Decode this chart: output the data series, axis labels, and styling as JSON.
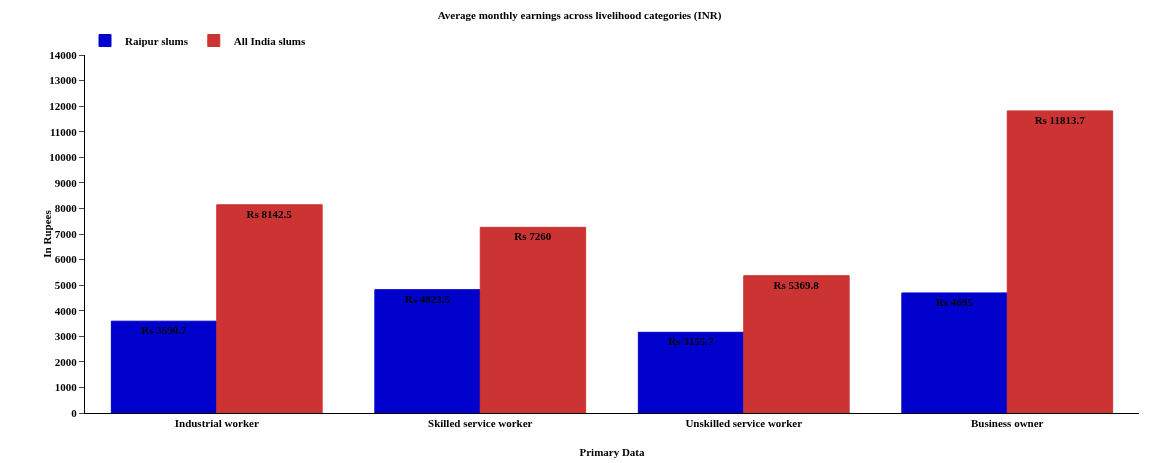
{
  "chart_data": {
    "type": "bar",
    "title": "Average monthly earnings across livelihood categories (INR)",
    "xlabel": "Primary Data",
    "ylabel": "In Rupees",
    "categories": [
      "Industrial worker",
      "Skilled service worker",
      "Unskilled service worker",
      "Business owner"
    ],
    "series": [
      {
        "name": "Raipur slums",
        "color": "#0000cc",
        "values": [
          3590.7,
          4823.5,
          3155.7,
          4695
        ],
        "value_labels": [
          "Rs 3590.7",
          "Rs 4823.5",
          "Rs 3155.7",
          "Rs 4695"
        ]
      },
      {
        "name": "All India slums",
        "color": "#cc3333",
        "values": [
          8142.5,
          7260,
          5369.8,
          11813.7
        ],
        "value_labels": [
          "Rs 8142.5",
          "Rs 7260",
          "Rs 5369.8",
          "Rs 11813.7"
        ]
      }
    ],
    "ylim": [
      0,
      14000
    ],
    "yticks": [
      0,
      1000,
      2000,
      3000,
      4000,
      5000,
      6000,
      7000,
      8000,
      9000,
      10000,
      11000,
      12000,
      13000,
      14000
    ],
    "grid": false,
    "legend": "top left"
  }
}
